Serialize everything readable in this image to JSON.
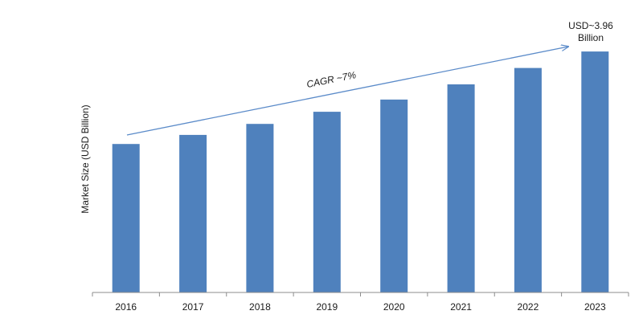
{
  "chart_data": {
    "type": "bar",
    "categories": [
      "2016",
      "2017",
      "2018",
      "2019",
      "2020",
      "2021",
      "2022",
      "2023"
    ],
    "values": [
      2.44,
      2.59,
      2.77,
      2.97,
      3.17,
      3.42,
      3.69,
      3.96
    ],
    "ylabel": "Market Size (USD Billion)",
    "xlabel": "",
    "ylim": [
      0,
      4.45
    ],
    "grid": false,
    "bar_color": "#4f81bd",
    "annotations": {
      "cagr_label": "CAGR ~7%",
      "last_value_line1": "USD~3.96",
      "last_value_line2": "Billion"
    }
  }
}
